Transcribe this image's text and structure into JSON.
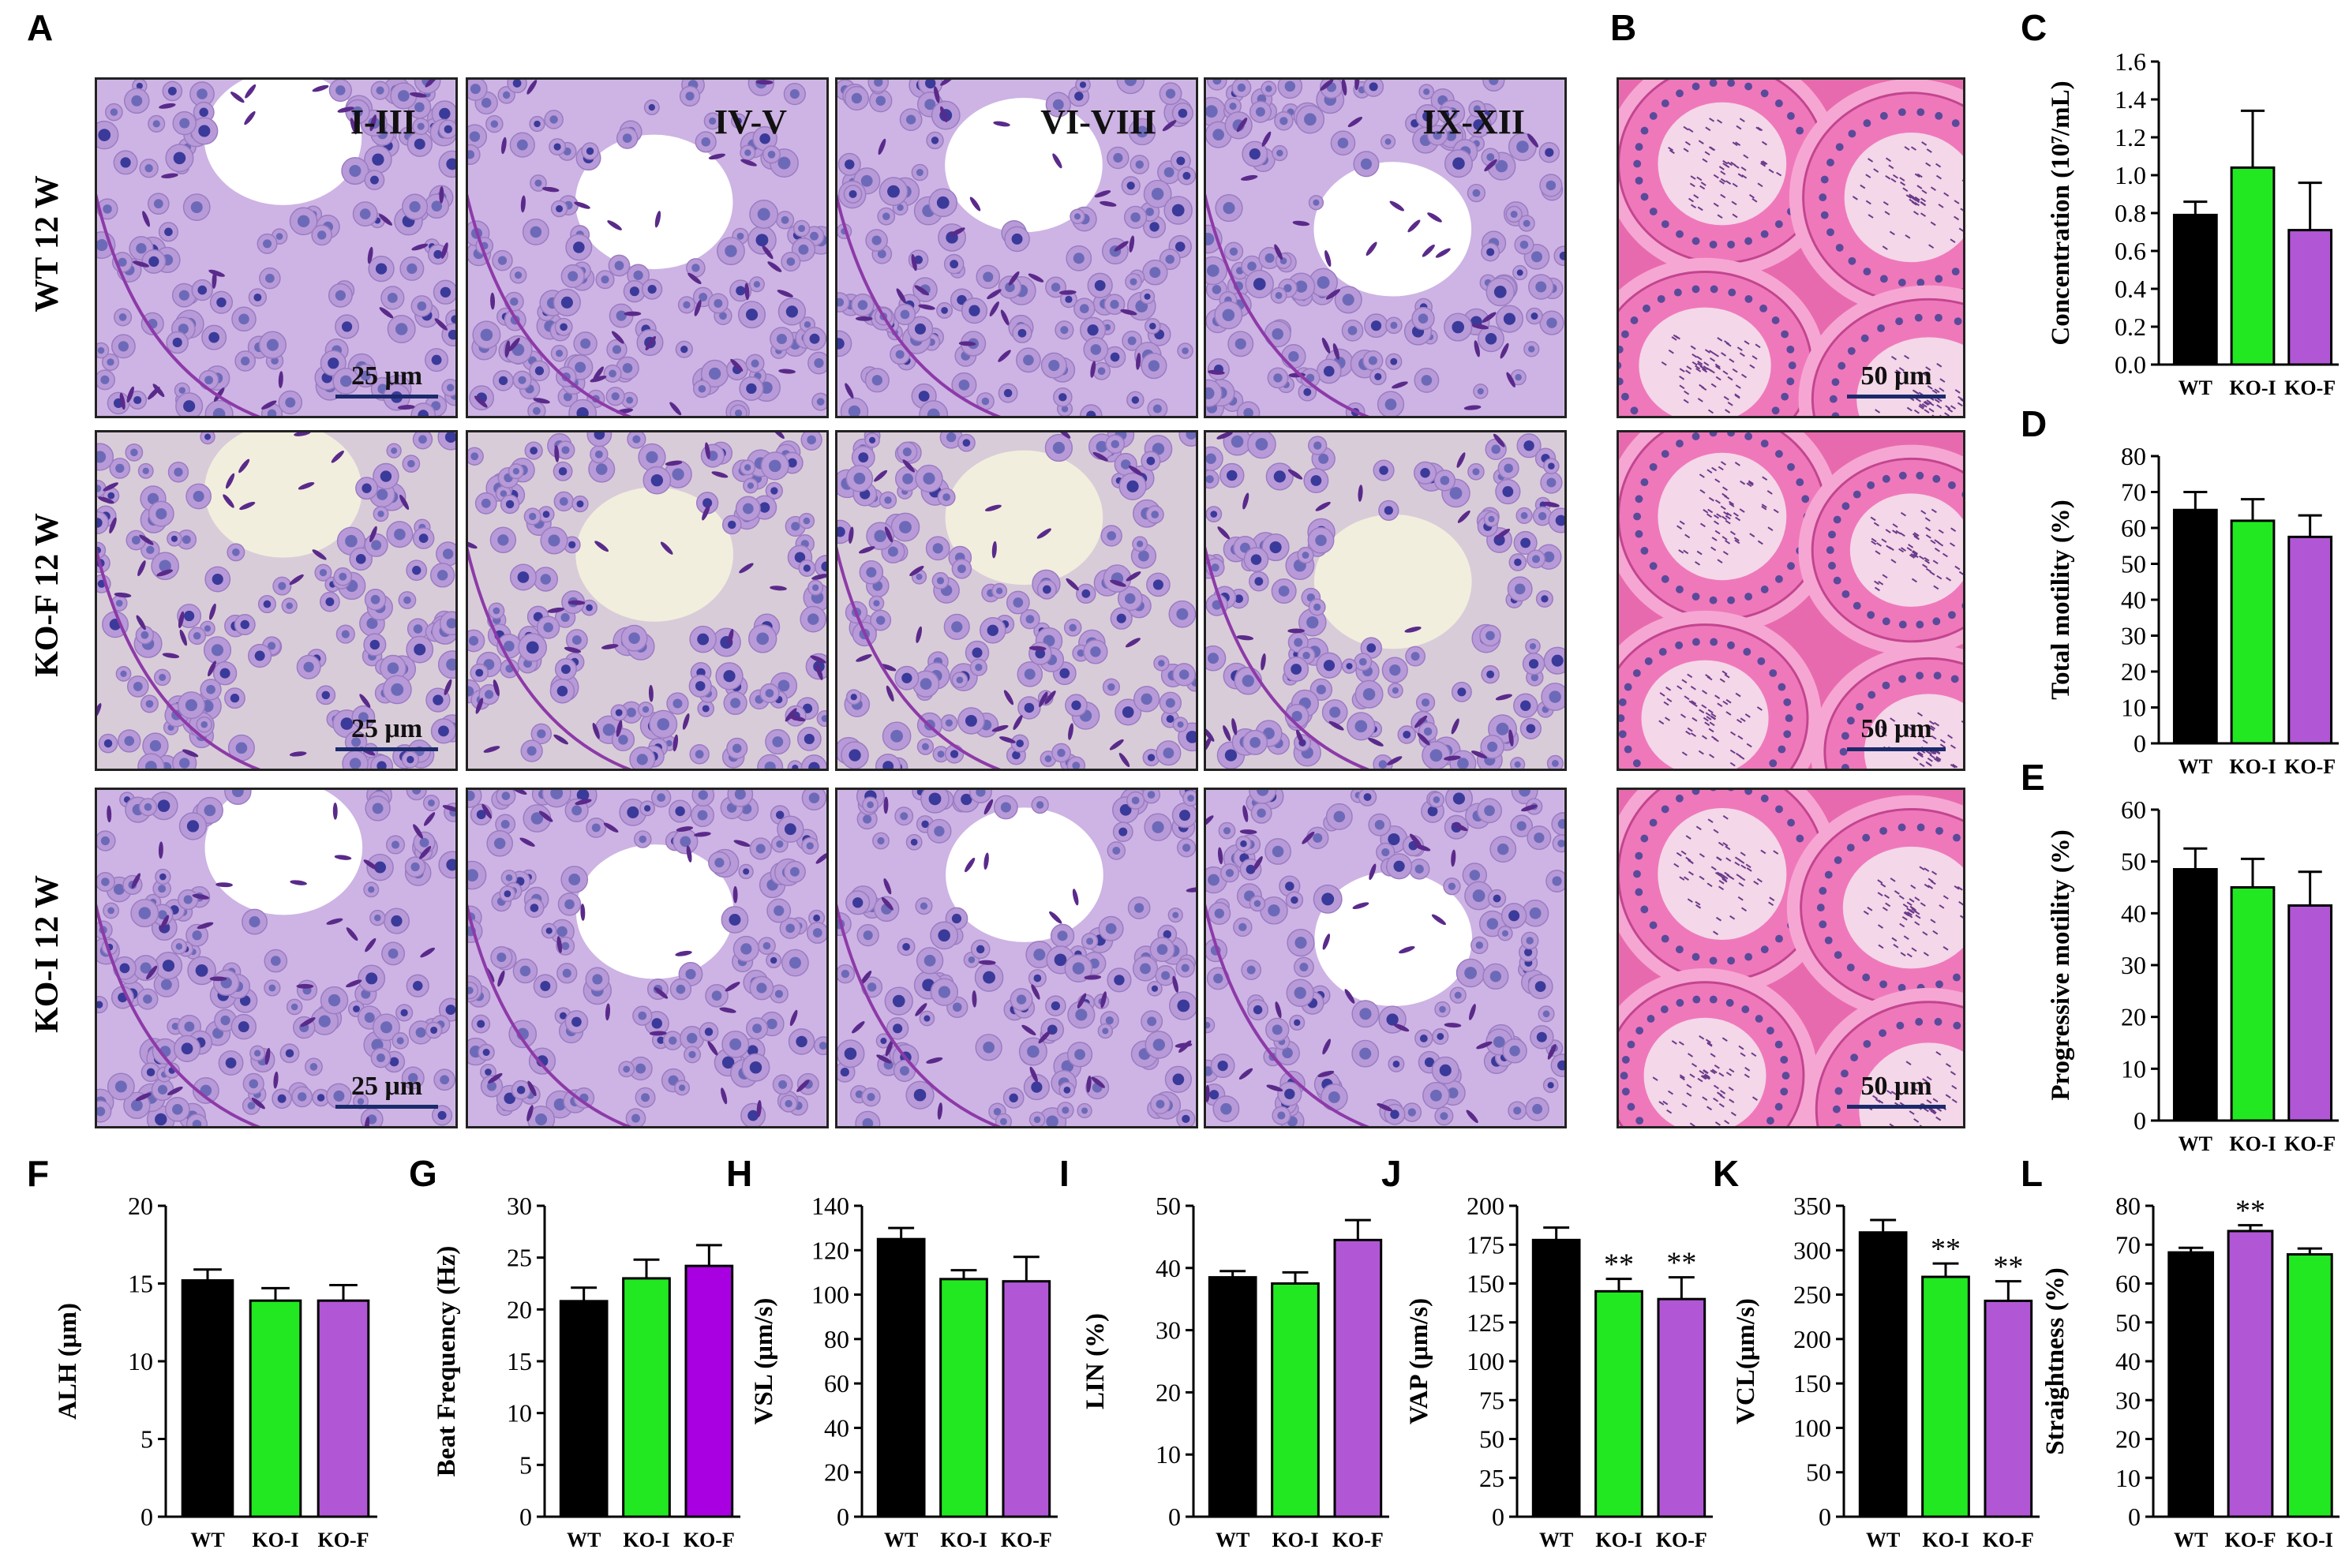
{
  "panels": {
    "A": "A",
    "B": "B",
    "C": "C",
    "D": "D",
    "E": "E",
    "F": "F",
    "G": "G",
    "H": "H",
    "I": "I",
    "J": "J",
    "K": "K",
    "L": "L"
  },
  "row_labels": [
    "WT 12 W",
    "KO-F 12 W",
    "KO-I 12 W"
  ],
  "stage_labels": [
    "I-III",
    "IV-V",
    "VI-VIII",
    "IX-XII"
  ],
  "scale_bars": {
    "testis": "25 μm",
    "epididymis": "50 μm"
  },
  "colors": {
    "WT": "#000000",
    "KO-I": "#22e822",
    "KO-F": "#b157d6",
    "tissue_testis": "#c7a6e0",
    "tissue_epididymis": "#ee5fb0"
  },
  "chart_data": [
    {
      "id": "C",
      "type": "bar",
      "categories": [
        "WT",
        "KO-I",
        "KO-F"
      ],
      "values": [
        0.79,
        1.04,
        0.71
      ],
      "errors": [
        0.07,
        0.3,
        0.25
      ],
      "colors": [
        "#000000",
        "#22e822",
        "#b157d6"
      ],
      "ylabel": "Concentration (10⁷/mL)",
      "ylim": [
        0,
        1.6
      ],
      "step": 0.2,
      "decimals": 1,
      "sig": [
        "",
        "",
        ""
      ]
    },
    {
      "id": "D",
      "type": "bar",
      "categories": [
        "WT",
        "KO-I",
        "KO-F"
      ],
      "values": [
        65,
        62,
        57.5
      ],
      "errors": [
        5,
        6,
        6
      ],
      "colors": [
        "#000000",
        "#22e822",
        "#b157d6"
      ],
      "ylabel": "Total motility (%)",
      "ylim": [
        0,
        80
      ],
      "step": 10,
      "decimals": 0,
      "sig": [
        "",
        "",
        ""
      ]
    },
    {
      "id": "E",
      "type": "bar",
      "categories": [
        "WT",
        "KO-I",
        "KO-F"
      ],
      "values": [
        48.5,
        45,
        41.5
      ],
      "errors": [
        4,
        5.5,
        6.5
      ],
      "colors": [
        "#000000",
        "#22e822",
        "#b157d6"
      ],
      "ylabel": "Progressive motility (%)",
      "ylim": [
        0,
        60
      ],
      "step": 10,
      "decimals": 0,
      "sig": [
        "",
        "",
        ""
      ]
    },
    {
      "id": "F",
      "type": "bar",
      "categories": [
        "WT",
        "KO-I",
        "KO-F"
      ],
      "values": [
        15.2,
        13.9,
        13.9
      ],
      "errors": [
        0.7,
        0.8,
        1.0
      ],
      "colors": [
        "#000000",
        "#22e822",
        "#b157d6"
      ],
      "ylabel": "ALH (μm)",
      "ylim": [
        0,
        20
      ],
      "step": 5,
      "decimals": 0,
      "sig": [
        "",
        "",
        ""
      ]
    },
    {
      "id": "G",
      "type": "bar",
      "categories": [
        "WT",
        "KO-I",
        "KO-F"
      ],
      "values": [
        20.8,
        23,
        24.2
      ],
      "errors": [
        1.3,
        1.8,
        2.0
      ],
      "colors": [
        "#000000",
        "#22e822",
        "#a800e0"
      ],
      "ylabel": "Beat Frequency (Hz)",
      "ylim": [
        0,
        30
      ],
      "step": 5,
      "decimals": 0,
      "sig": [
        "",
        "",
        ""
      ]
    },
    {
      "id": "H",
      "type": "bar",
      "categories": [
        "WT",
        "KO-I",
        "KO-F"
      ],
      "values": [
        125,
        107,
        106
      ],
      "errors": [
        5,
        4,
        11
      ],
      "colors": [
        "#000000",
        "#22e822",
        "#b157d6"
      ],
      "ylabel": "VSL (μm/s)",
      "ylim": [
        0,
        140
      ],
      "step": 20,
      "decimals": 0,
      "sig": [
        "",
        "",
        ""
      ]
    },
    {
      "id": "I",
      "type": "bar",
      "categories": [
        "WT",
        "KO-I",
        "KO-F"
      ],
      "values": [
        38.5,
        37.5,
        44.5
      ],
      "errors": [
        1,
        1.8,
        3.2
      ],
      "colors": [
        "#000000",
        "#22e822",
        "#b157d6"
      ],
      "ylabel": "LIN (%)",
      "ylim": [
        0,
        50
      ],
      "step": 10,
      "decimals": 0,
      "sig": [
        "",
        "",
        ""
      ]
    },
    {
      "id": "J",
      "type": "bar",
      "categories": [
        "WT",
        "KO-I",
        "KO-F"
      ],
      "values": [
        178,
        145,
        140
      ],
      "errors": [
        8,
        8,
        14
      ],
      "colors": [
        "#000000",
        "#22e822",
        "#b157d6"
      ],
      "ylabel": "VAP (μm/s)",
      "ylim": [
        0,
        200
      ],
      "step": 25,
      "decimals": 0,
      "sig": [
        "",
        "**",
        "**"
      ]
    },
    {
      "id": "K",
      "type": "bar",
      "categories": [
        "WT",
        "KO-I",
        "KO-F"
      ],
      "values": [
        320,
        270,
        243
      ],
      "errors": [
        14,
        15,
        22
      ],
      "colors": [
        "#000000",
        "#22e822",
        "#b157d6"
      ],
      "ylabel": "VCL(μm/s)",
      "ylim": [
        0,
        350
      ],
      "step": 50,
      "decimals": 0,
      "sig": [
        "",
        "**",
        "**"
      ]
    },
    {
      "id": "L",
      "type": "bar",
      "categories": [
        "WT",
        "KO-F",
        "KO-I"
      ],
      "values": [
        68,
        73.5,
        67.5
      ],
      "errors": [
        1.2,
        1.5,
        1.5
      ],
      "colors": [
        "#000000",
        "#b157d6",
        "#22e822"
      ],
      "ylabel": "Straightness (%)",
      "ylim": [
        0,
        80
      ],
      "step": 10,
      "decimals": 0,
      "sig": [
        "",
        "**",
        ""
      ]
    }
  ]
}
